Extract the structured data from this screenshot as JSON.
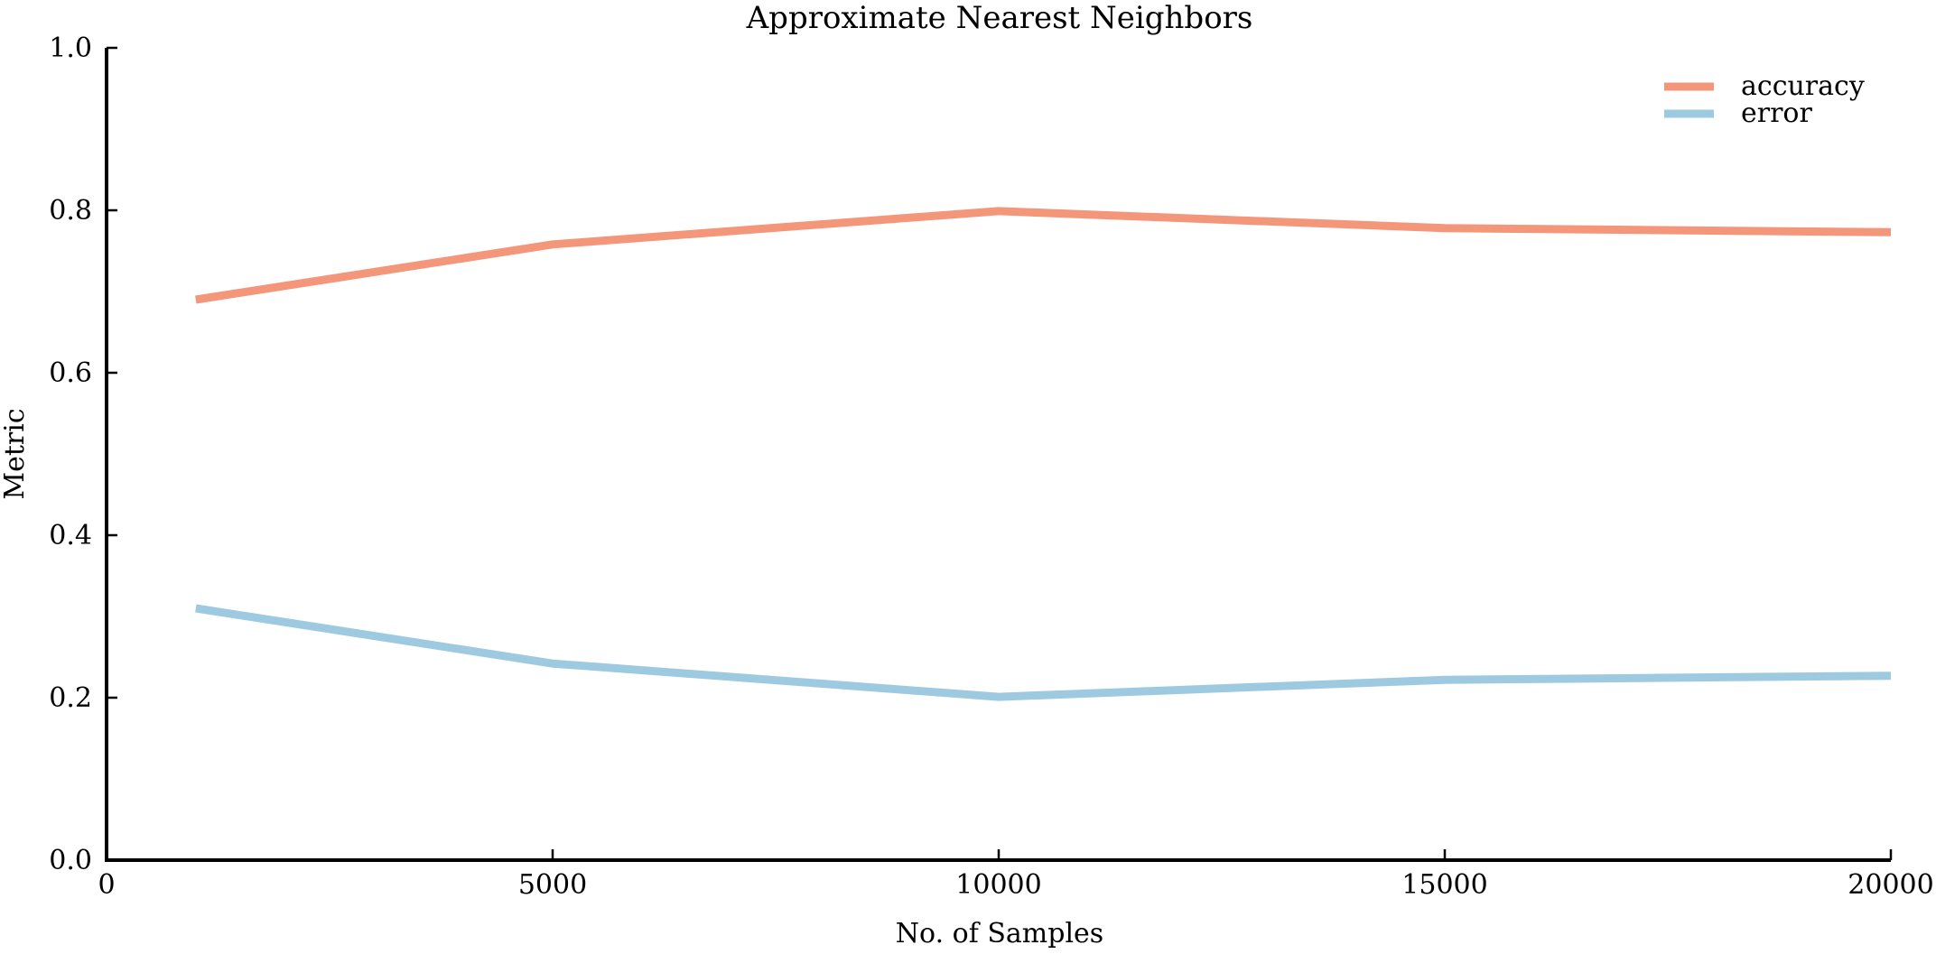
{
  "chart_data": {
    "type": "line",
    "title": "Approximate Nearest Neighbors",
    "xlabel": "No. of Samples",
    "ylabel": "Metric",
    "x": [
      1000,
      5000,
      10000,
      15000,
      20000
    ],
    "xlim": [
      0,
      20000
    ],
    "ylim": [
      0.0,
      1.0
    ],
    "xticks": [
      "0",
      "5000",
      "10000",
      "15000",
      "20000"
    ],
    "yticks": [
      "0.0",
      "0.2",
      "0.4",
      "0.6",
      "0.8",
      "1.0"
    ],
    "grid": false,
    "legend_position": "top-right",
    "series": [
      {
        "name": "accuracy",
        "color": "#f4967a",
        "values": [
          0.69,
          0.758,
          0.799,
          0.778,
          0.773
        ]
      },
      {
        "name": "error",
        "color": "#9ecae1",
        "values": [
          0.31,
          0.242,
          0.201,
          0.222,
          0.227
        ]
      }
    ]
  }
}
